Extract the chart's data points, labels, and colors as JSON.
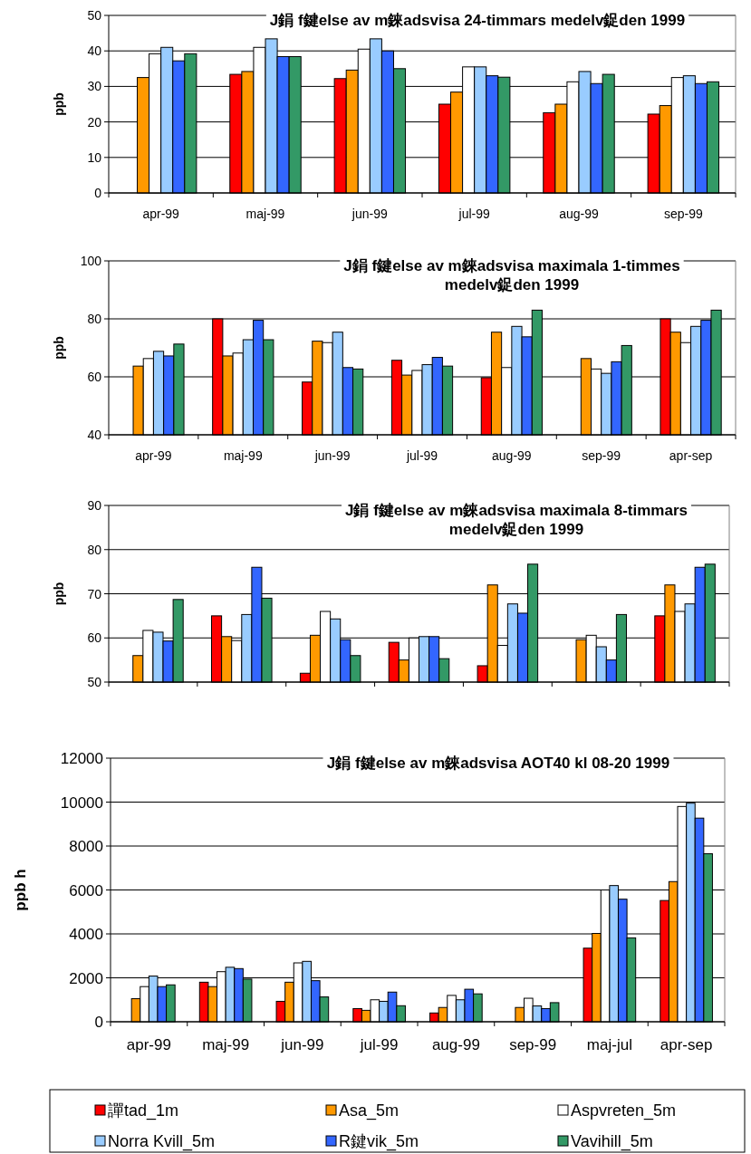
{
  "chart_data": [
    {
      "type": "bar",
      "title": "J鋗 f鍵else av m錸adsvisa 24-timmars medelv鋜den 1999",
      "ylabel": "ppb",
      "categories": [
        "apr-99",
        "maj-99",
        "jun-99",
        "jul-99",
        "aug-99",
        "sep-99"
      ],
      "ylim": [
        0,
        50
      ],
      "yticks": [
        0,
        10,
        20,
        30,
        40,
        50
      ],
      "grid": "y",
      "series": [
        {
          "color": "#ff0000",
          "values": [
            null,
            33.4,
            32.2,
            25,
            22.6,
            22.2
          ]
        },
        {
          "color": "#ff9900",
          "values": [
            32.5,
            34.2,
            34.6,
            28.4,
            25,
            24.6
          ]
        },
        {
          "color": "#ffffff",
          "values": [
            39.2,
            41,
            40.5,
            35.5,
            31.3,
            32.5
          ]
        },
        {
          "color": "#99ccff",
          "values": [
            41,
            43.4,
            43.4,
            35.5,
            34.2,
            33
          ]
        },
        {
          "color": "#3366ff",
          "values": [
            37.2,
            38.4,
            40,
            33,
            30.8,
            30.8
          ]
        },
        {
          "color": "#339966",
          "values": [
            39.2,
            38.4,
            35,
            32.6,
            33.4,
            31.3
          ]
        }
      ]
    },
    {
      "type": "bar",
      "title": "J鋗 f鍵else av m錸adsvisa maximala 1-timmes medelv鋜den 1999",
      "ylabel": "ppb",
      "categories": [
        "apr-99",
        "maj-99",
        "jun-99",
        "jul-99",
        "aug-99",
        "sep-99",
        "apr-sep"
      ],
      "ylim": [
        40,
        100
      ],
      "yticks": [
        40,
        60,
        80,
        100
      ],
      "grid": "y",
      "series": [
        {
          "color": "#ff0000",
          "values": [
            null,
            80,
            58.2,
            65.7,
            59.7,
            null,
            80
          ]
        },
        {
          "color": "#ff9900",
          "values": [
            63.7,
            67.2,
            72.3,
            60.6,
            75.4,
            66.3,
            75.4
          ]
        },
        {
          "color": "#ffffff",
          "values": [
            66.3,
            68.2,
            71.8,
            62.2,
            63.2,
            62.7,
            71.8
          ]
        },
        {
          "color": "#99ccff",
          "values": [
            68.8,
            72.8,
            75.4,
            64.2,
            77.4,
            61.2,
            77.4
          ]
        },
        {
          "color": "#3366ff",
          "values": [
            67.2,
            79.5,
            63.2,
            66.7,
            73.8,
            65.2,
            79.5
          ]
        },
        {
          "color": "#339966",
          "values": [
            71.3,
            72.8,
            62.7,
            63.7,
            83,
            70.8,
            83
          ]
        }
      ]
    },
    {
      "type": "bar",
      "title": "J鋗 f鍵else av m錸adsvisa maximala 8-timmars medelv鋜den 1999",
      "ylabel": "ppb",
      "categories": [
        null,
        null,
        null,
        null,
        null,
        null,
        null
      ],
      "ylim": [
        50,
        90
      ],
      "yticks": [
        50,
        60,
        70,
        80,
        90
      ],
      "grid": "y",
      "series": [
        {
          "color": "#ff0000",
          "values": [
            null,
            65,
            52,
            59,
            53.7,
            null,
            65
          ]
        },
        {
          "color": "#ff9900",
          "values": [
            56,
            60.3,
            60.6,
            55,
            72,
            59.6,
            72
          ]
        },
        {
          "color": "#ffffff",
          "values": [
            61.7,
            59.4,
            66,
            60,
            58.3,
            60.6,
            66
          ]
        },
        {
          "color": "#99ccff",
          "values": [
            61.3,
            65.3,
            64.3,
            60.3,
            67.7,
            58,
            67.7
          ]
        },
        {
          "color": "#3366ff",
          "values": [
            59.3,
            76,
            59.6,
            60.3,
            65.6,
            55,
            76
          ]
        },
        {
          "color": "#339966",
          "values": [
            68.7,
            69,
            56,
            55.3,
            76.7,
            65.3,
            76.7
          ]
        }
      ]
    },
    {
      "type": "bar",
      "title": "J鋗 f鍵else av m錸adsvisa AOT40 kl 08-20 1999",
      "ylabel": "ppb h",
      "categories": [
        "apr-99",
        "maj-99",
        "jun-99",
        "jul-99",
        "aug-99",
        "sep-99",
        "maj-jul",
        "apr-sep"
      ],
      "ylim": [
        0,
        12000
      ],
      "yticks": [
        0,
        2000,
        4000,
        6000,
        8000,
        10000,
        12000
      ],
      "grid": "y",
      "legend": "bottom",
      "series": [
        {
          "name": "譂tad_1m",
          "color": "#ff0000",
          "values": [
            null,
            1800,
            930,
            600,
            400,
            null,
            3350,
            5520
          ]
        },
        {
          "name": "Asa_5m",
          "color": "#ff9900",
          "values": [
            1050,
            1600,
            1800,
            520,
            650,
            650,
            4020,
            6380
          ]
        },
        {
          "name": "Aspvreten_5m",
          "color": "#ffffff",
          "values": [
            1600,
            2280,
            2680,
            1000,
            1200,
            1070,
            6000,
            9800
          ]
        },
        {
          "name": "Norra Kvill_5m",
          "color": "#99ccff",
          "values": [
            2080,
            2480,
            2750,
            930,
            1000,
            720,
            6200,
            9950
          ]
        },
        {
          "name": "R鍵vik_5m",
          "color": "#3366ff",
          "values": [
            1600,
            2420,
            1870,
            1350,
            1480,
            600,
            5580,
            9270
          ]
        },
        {
          "name": "Vavihill_5m",
          "color": "#339966",
          "values": [
            1680,
            1940,
            1130,
            730,
            1270,
            870,
            3820,
            7650
          ]
        }
      ]
    }
  ]
}
